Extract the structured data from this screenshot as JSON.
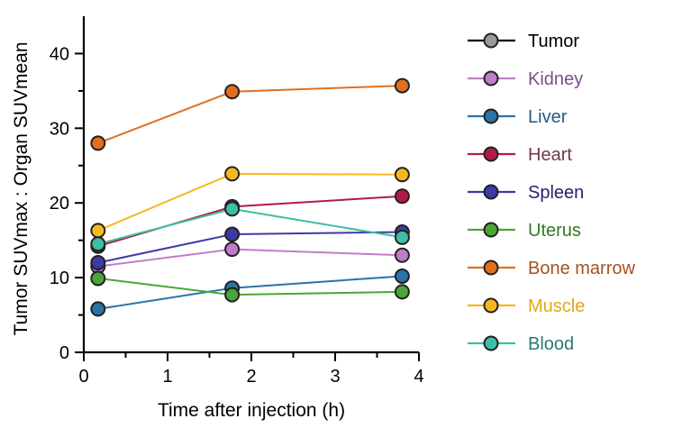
{
  "chart_data": {
    "type": "line",
    "xlabel": "Time after injection (h)",
    "ylabel": "Tumor SUVmax : Organ SUVmean",
    "xlim": [
      0,
      4
    ],
    "ylim": [
      0,
      45
    ],
    "x_ticks": [
      0,
      1,
      2,
      3,
      4
    ],
    "y_ticks": [
      0,
      10,
      20,
      30,
      40
    ],
    "x_tick_labels": [
      "0",
      "1",
      "2",
      "3",
      "4"
    ],
    "y_tick_labels": [
      "0",
      "10",
      "20",
      "30",
      "40"
    ],
    "grid": false,
    "legend_position": "right",
    "x": [
      0.17,
      1.77,
      3.8
    ],
    "series": [
      {
        "name": "Tumor",
        "color": "#9a9a9a",
        "text_color": "#000000",
        "values": null
      },
      {
        "name": "Kidney",
        "color": "#c07cc8",
        "text_color": "#7a4f86",
        "values": [
          11.5,
          13.8,
          13.0
        ]
      },
      {
        "name": "Liver",
        "color": "#2b73a6",
        "text_color": "#1f5a86",
        "values": [
          5.8,
          8.6,
          10.2
        ]
      },
      {
        "name": "Heart",
        "color": "#b01c45",
        "text_color": "#6e3a4a",
        "values": [
          14.2,
          19.5,
          20.9
        ]
      },
      {
        "name": "Spleen",
        "color": "#3a3aa8",
        "text_color": "#23236e",
        "values": [
          12.0,
          15.8,
          16.1
        ]
      },
      {
        "name": "Uterus",
        "color": "#4aa638",
        "text_color": "#2f7a21",
        "values": [
          9.9,
          7.7,
          8.1
        ]
      },
      {
        "name": "Bone marrow",
        "color": "#e0701e",
        "text_color": "#a4521c",
        "values": [
          28.0,
          34.9,
          35.7
        ]
      },
      {
        "name": "Muscle",
        "color": "#f7b81e",
        "text_color": "#e3a51a",
        "values": [
          16.3,
          23.9,
          23.8
        ]
      },
      {
        "name": "Blood",
        "color": "#3cbfa6",
        "text_color": "#2c7a6c",
        "values": [
          14.5,
          19.2,
          15.4
        ]
      }
    ]
  }
}
